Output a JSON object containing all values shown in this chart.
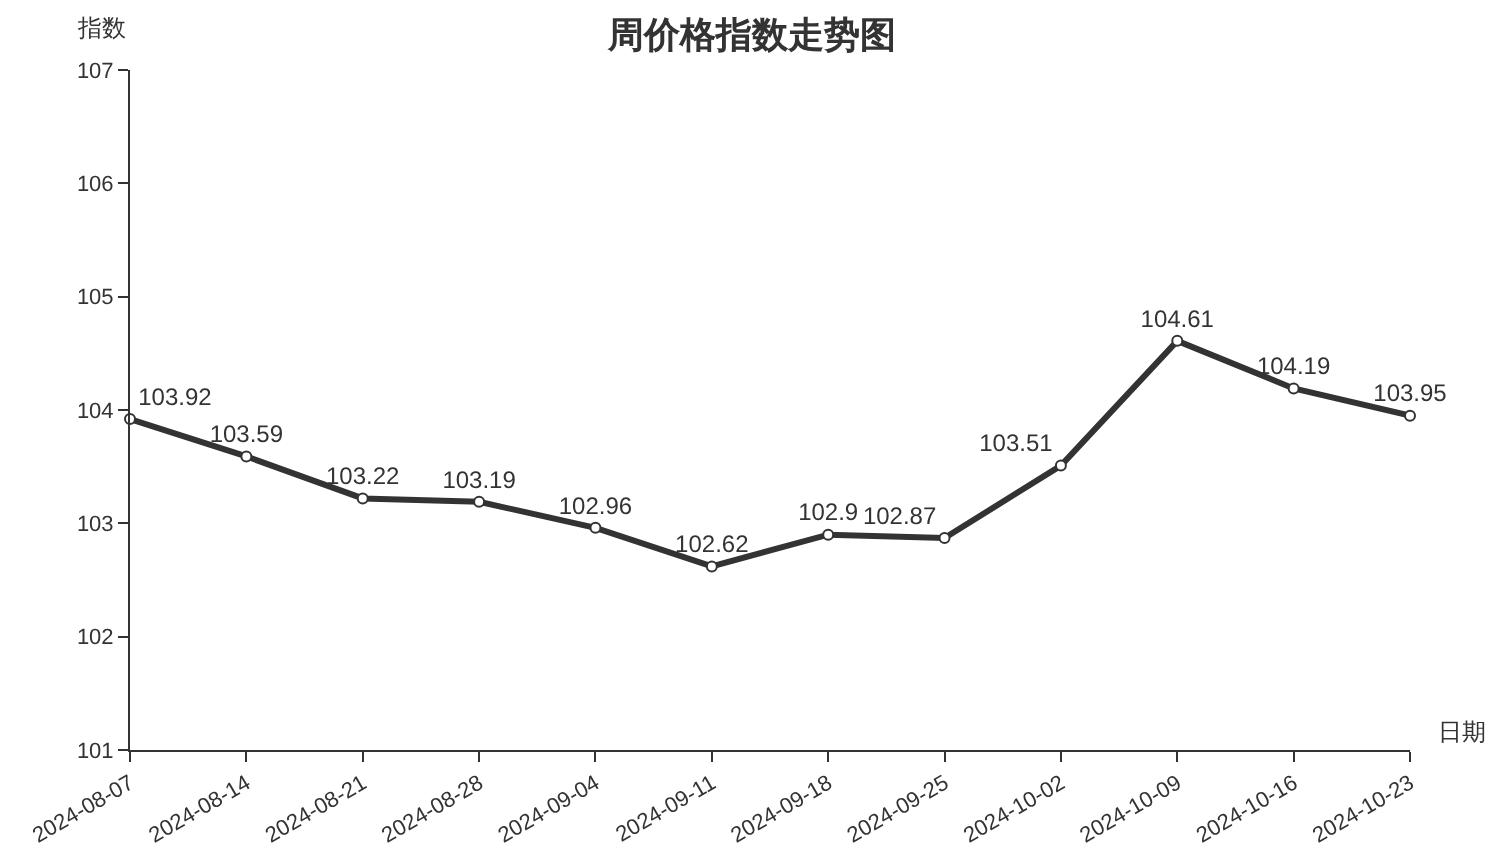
{
  "chart_data": {
    "type": "line",
    "title": "周价格指数走势图",
    "xlabel": "日期",
    "ylabel": "指数",
    "categories": [
      "2024-08-07",
      "2024-08-14",
      "2024-08-21",
      "2024-08-28",
      "2024-09-04",
      "2024-09-11",
      "2024-09-18",
      "2024-09-25",
      "2024-10-02",
      "2024-10-09",
      "2024-10-16",
      "2024-10-23"
    ],
    "series": [
      {
        "color": "#333333",
        "values": [
          103.92,
          103.59,
          103.22,
          103.19,
          102.96,
          102.62,
          102.9,
          102.87,
          103.51,
          104.61,
          104.19,
          103.95
        ]
      }
    ],
    "ylim": [
      101,
      107
    ],
    "yticks": [
      101,
      102,
      103,
      104,
      105,
      106,
      107
    ],
    "grid": false,
    "legend": false,
    "marker": "circle",
    "line_style": "solid",
    "data_labels": true
  }
}
